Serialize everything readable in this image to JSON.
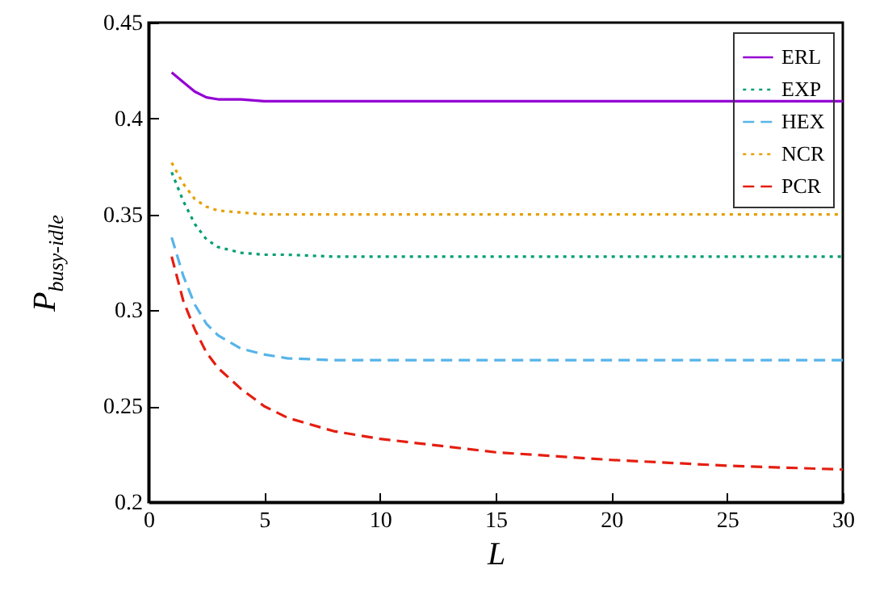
{
  "chart_data": {
    "type": "line",
    "xlabel": "L",
    "ylabel": "P$_{busy-idle}$",
    "x": [
      1,
      1.5,
      2,
      2.5,
      3,
      4,
      5,
      6,
      8,
      10,
      15,
      20,
      25,
      30
    ],
    "series": [
      {
        "name": "ERL",
        "color": "#9400d3",
        "line_style": "solid",
        "values": [
          0.424,
          0.419,
          0.414,
          0.411,
          0.41,
          0.41,
          0.409,
          0.409,
          0.409,
          0.409,
          0.409,
          0.409,
          0.409,
          0.409
        ]
      },
      {
        "name": "EXP",
        "color": "#009e73",
        "line_style": "dotted",
        "values": [
          0.372,
          0.357,
          0.345,
          0.337,
          0.333,
          0.33,
          0.329,
          0.329,
          0.328,
          0.328,
          0.328,
          0.328,
          0.328,
          0.328
        ]
      },
      {
        "name": "HEX",
        "color": "#56b4e9",
        "line_style": "dashed",
        "values": [
          0.338,
          0.318,
          0.303,
          0.293,
          0.287,
          0.28,
          0.277,
          0.275,
          0.274,
          0.274,
          0.274,
          0.274,
          0.274,
          0.274
        ]
      },
      {
        "name": "NCR",
        "color": "#e69f00",
        "line_style": "dotted",
        "values": [
          0.377,
          0.366,
          0.358,
          0.354,
          0.352,
          0.351,
          0.35,
          0.35,
          0.35,
          0.35,
          0.35,
          0.35,
          0.35,
          0.35
        ]
      },
      {
        "name": "PCR",
        "color": "#e51e10",
        "line_style": "dashed",
        "values": [
          0.328,
          0.305,
          0.29,
          0.278,
          0.27,
          0.259,
          0.25,
          0.244,
          0.237,
          0.233,
          0.226,
          0.222,
          0.219,
          0.217
        ]
      }
    ],
    "xlim": [
      0,
      30
    ],
    "xticks": [
      0,
      5,
      10,
      15,
      20,
      25,
      30
    ],
    "ylim": [
      0.2,
      0.45
    ],
    "yticks": [
      0.2,
      0.25,
      0.3,
      0.35,
      0.4,
      0.45
    ],
    "legend": "top right"
  }
}
